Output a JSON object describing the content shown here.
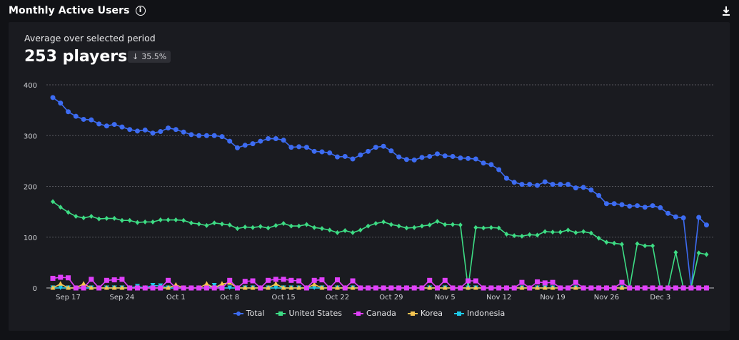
{
  "header": {
    "title": "Monthly Active Users",
    "info_icon": "info-icon",
    "download_icon": "download-icon"
  },
  "summary": {
    "subtitle": "Average over selected period",
    "value": "253 players",
    "change": "35.5%",
    "change_direction": "down"
  },
  "chart_data": {
    "type": "line",
    "ylim": [
      0,
      400
    ],
    "yticks": [
      "0",
      "100",
      "200",
      "300",
      "400"
    ],
    "xtick_labels": [
      "Sep 17",
      "Sep 24",
      "Oct 1",
      "Oct 8",
      "Oct 15",
      "Oct 22",
      "Oct 29",
      "Nov 5",
      "Nov 12",
      "Nov 19",
      "Nov 26",
      "Dec 3"
    ],
    "grid": "horizontal dashed",
    "legend_position": "bottom",
    "x": [
      "Sep 15",
      "Sep 16",
      "Sep 17",
      "Sep 18",
      "Sep 19",
      "Sep 20",
      "Sep 21",
      "Sep 22",
      "Sep 23",
      "Sep 24",
      "Sep 25",
      "Sep 26",
      "Sep 27",
      "Sep 28",
      "Sep 29",
      "Sep 30",
      "Oct 1",
      "Oct 2",
      "Oct 3",
      "Oct 4",
      "Oct 5",
      "Oct 6",
      "Oct 7",
      "Oct 8",
      "Oct 9",
      "Oct 10",
      "Oct 11",
      "Oct 12",
      "Oct 13",
      "Oct 14",
      "Oct 15",
      "Oct 16",
      "Oct 17",
      "Oct 18",
      "Oct 19",
      "Oct 20",
      "Oct 21",
      "Oct 22",
      "Oct 23",
      "Oct 24",
      "Oct 25",
      "Oct 26",
      "Oct 27",
      "Oct 28",
      "Oct 29",
      "Oct 30",
      "Oct 31",
      "Nov 1",
      "Nov 2",
      "Nov 3",
      "Nov 4",
      "Nov 5",
      "Nov 6",
      "Nov 7",
      "Nov 8",
      "Nov 9",
      "Nov 10",
      "Nov 11",
      "Nov 12",
      "Nov 13",
      "Nov 14",
      "Nov 15",
      "Nov 16",
      "Nov 17",
      "Nov 18",
      "Nov 19",
      "Nov 20",
      "Nov 21",
      "Nov 22",
      "Nov 23",
      "Nov 24",
      "Nov 25",
      "Nov 26",
      "Nov 27",
      "Nov 28",
      "Nov 29",
      "Nov 30",
      "Dec 1",
      "Dec 2",
      "Dec 3",
      "Dec 4",
      "Dec 5",
      "Dec 6",
      "Dec 7",
      "Dec 8",
      "Dec 9"
    ],
    "series": [
      {
        "name": "Total",
        "color": "#3d6cf2",
        "marker": "circle",
        "values": [
          375,
          364,
          347,
          338,
          332,
          331,
          323,
          319,
          322,
          317,
          312,
          309,
          311,
          305,
          308,
          315,
          312,
          307,
          302,
          300,
          300,
          300,
          298,
          289,
          276,
          281,
          284,
          289,
          294,
          294,
          291,
          277,
          278,
          277,
          269,
          268,
          266,
          258,
          259,
          254,
          262,
          269,
          277,
          279,
          270,
          258,
          253,
          252,
          257,
          259,
          264,
          260,
          259,
          256,
          255,
          254,
          246,
          243,
          233,
          216,
          208,
          204,
          204,
          202,
          209,
          204,
          204,
          204,
          197,
          198,
          193,
          182,
          166,
          166,
          164,
          161,
          162,
          159,
          162,
          158,
          147,
          140,
          138,
          0,
          139,
          124
        ]
      },
      {
        "name": "United States",
        "color": "#3ddc84",
        "marker": "diamond",
        "values": [
          170,
          159,
          149,
          141,
          138,
          141,
          136,
          137,
          137,
          133,
          133,
          129,
          130,
          130,
          134,
          134,
          134,
          133,
          128,
          126,
          123,
          128,
          126,
          124,
          117,
          120,
          119,
          121,
          118,
          123,
          127,
          122,
          122,
          125,
          119,
          117,
          114,
          109,
          113,
          109,
          114,
          122,
          127,
          130,
          125,
          122,
          118,
          119,
          122,
          124,
          131,
          125,
          125,
          124,
          0,
          119,
          118,
          119,
          118,
          106,
          103,
          102,
          105,
          104,
          111,
          110,
          110,
          114,
          109,
          111,
          108,
          98,
          90,
          88,
          86,
          0,
          87,
          83,
          83,
          0,
          0,
          70,
          0,
          0,
          69,
          66
        ]
      },
      {
        "name": "Indonesia",
        "color": "#1ec8e6",
        "marker": "triangle-down",
        "values": [
          0,
          0,
          0,
          0,
          0,
          0,
          0,
          0,
          0,
          0,
          0,
          3,
          0,
          5,
          4,
          0,
          0,
          0,
          0,
          0,
          0,
          5,
          0,
          0,
          0,
          0,
          0,
          0,
          0,
          0,
          0,
          0,
          0,
          0,
          0,
          0,
          0,
          0,
          0,
          0,
          0,
          0,
          0,
          0,
          0,
          0,
          0,
          0,
          0,
          0,
          0,
          0,
          0,
          0,
          0,
          0,
          0,
          0,
          0,
          0,
          0,
          0,
          0,
          0,
          0,
          0,
          0,
          0,
          0,
          0,
          0,
          0,
          0,
          0,
          0,
          0,
          0,
          0,
          0,
          0,
          0,
          0,
          0,
          0,
          0,
          0
        ]
      },
      {
        "name": "Korea",
        "color": "#f5c451",
        "marker": "triangle-up",
        "values": [
          0,
          8,
          0,
          0,
          8,
          0,
          0,
          0,
          0,
          0,
          0,
          0,
          0,
          0,
          0,
          0,
          6,
          0,
          0,
          0,
          8,
          0,
          8,
          10,
          0,
          0,
          0,
          0,
          0,
          8,
          0,
          0,
          0,
          0,
          7,
          0,
          0,
          0,
          0,
          0,
          0,
          0,
          0,
          0,
          0,
          0,
          0,
          0,
          0,
          0,
          0,
          0,
          0,
          0,
          0,
          0,
          0,
          0,
          0,
          0,
          0,
          0,
          0,
          0,
          0,
          0,
          0,
          0,
          0,
          0,
          0,
          0,
          0,
          0,
          0,
          0,
          0,
          0,
          0,
          0,
          0,
          0,
          0,
          0,
          0,
          0
        ]
      },
      {
        "name": "Canada",
        "color": "#e040fb",
        "marker": "square",
        "values": [
          19,
          21,
          20,
          0,
          0,
          17,
          0,
          15,
          16,
          17,
          0,
          0,
          0,
          0,
          0,
          15,
          0,
          0,
          0,
          0,
          0,
          0,
          0,
          15,
          0,
          13,
          14,
          0,
          15,
          17,
          17,
          15,
          14,
          0,
          15,
          16,
          0,
          16,
          0,
          14,
          0,
          0,
          0,
          0,
          0,
          0,
          0,
          0,
          0,
          15,
          0,
          15,
          0,
          0,
          14,
          14,
          0,
          0,
          0,
          0,
          0,
          11,
          0,
          12,
          10,
          11,
          0,
          0,
          11,
          0,
          0,
          0,
          0,
          0,
          11,
          0,
          0,
          0,
          0,
          0,
          0,
          0,
          0,
          0,
          0,
          0
        ]
      }
    ],
    "legend_order": [
      "Total",
      "United States",
      "Canada",
      "Korea",
      "Indonesia"
    ]
  }
}
